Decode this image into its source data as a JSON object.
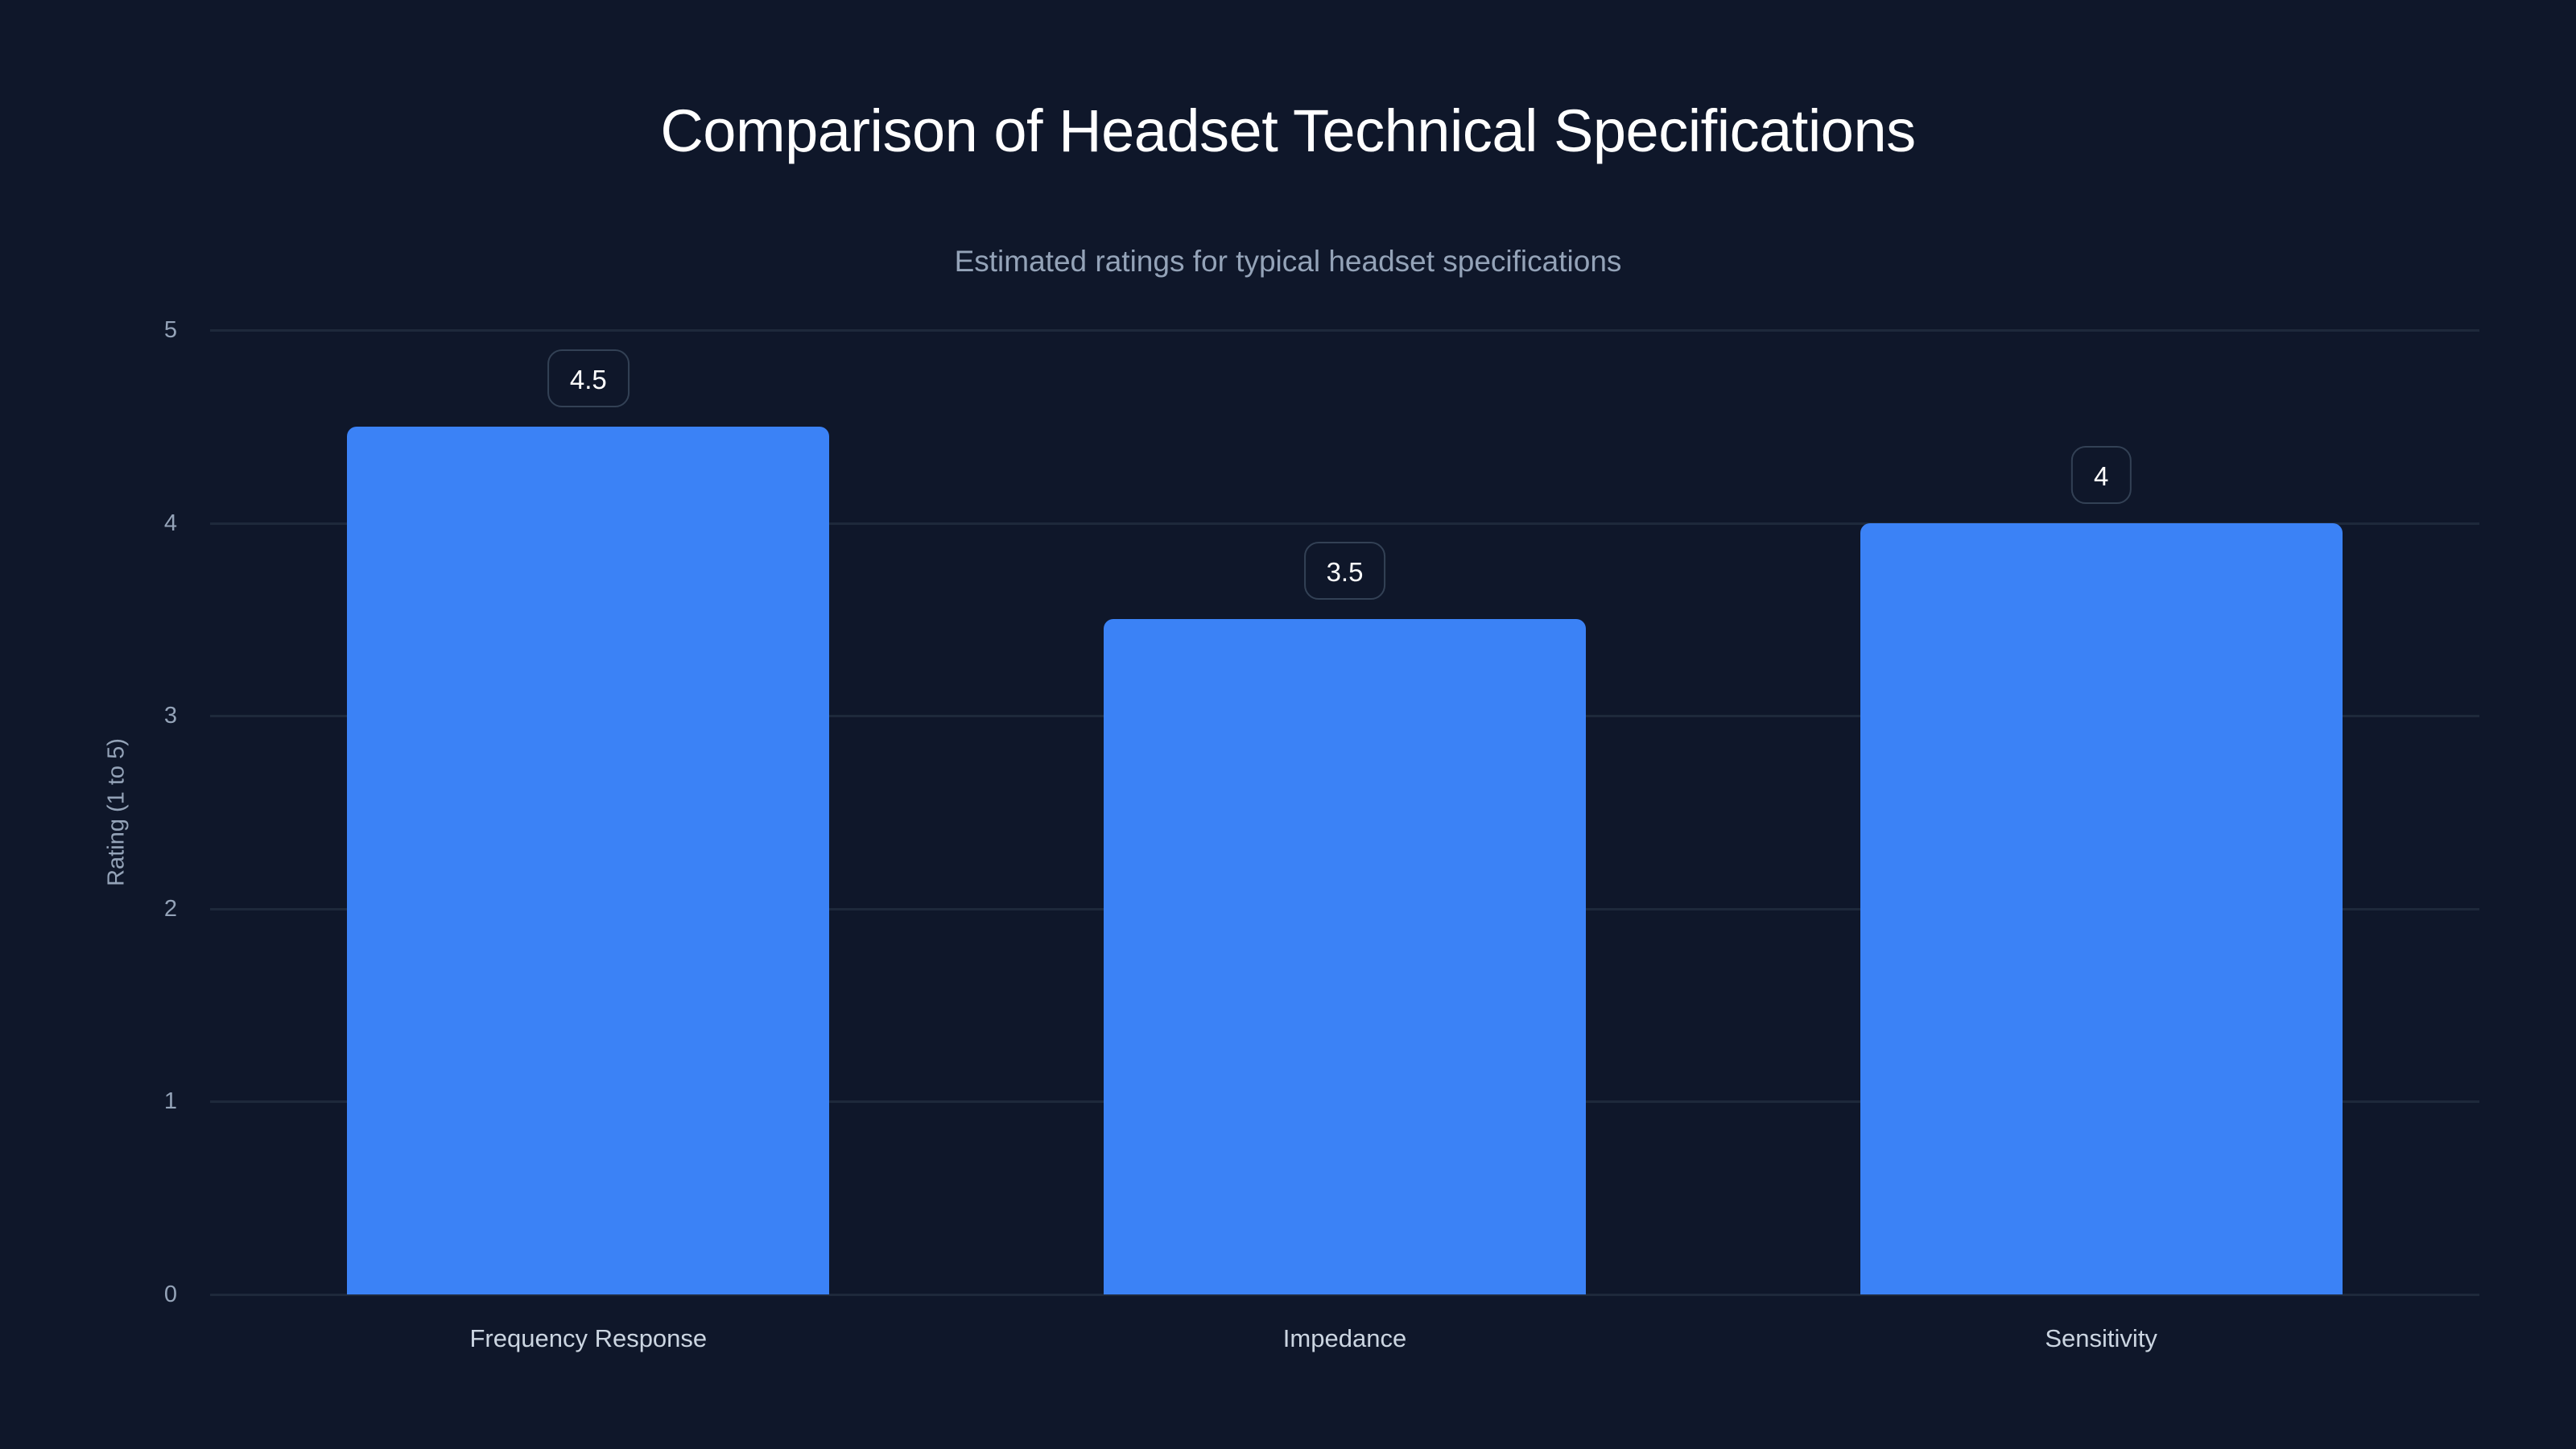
{
  "header": {
    "title": "Comparison of Headset Technical Specifications",
    "subtitle": "Estimated ratings for typical headset specifications"
  },
  "axes": {
    "y_title": "Rating (1 to 5)",
    "y_ticks": [
      "0",
      "1",
      "2",
      "3",
      "4",
      "5"
    ]
  },
  "bars": [
    {
      "category": "Frequency Response",
      "value": 4.5,
      "label": "4.5"
    },
    {
      "category": "Impedance",
      "value": 3.5,
      "label": "3.5"
    },
    {
      "category": "Sensitivity",
      "value": 4,
      "label": "4"
    }
  ],
  "colors": {
    "background": "#0f172a",
    "bar": "#3b82f6",
    "grid": "#1e293b",
    "label_border": "#334155"
  },
  "chart_data": {
    "type": "bar",
    "title": "Comparison of Headset Technical Specifications",
    "subtitle": "Estimated ratings for typical headset specifications",
    "categories": [
      "Frequency Response",
      "Impedance",
      "Sensitivity"
    ],
    "values": [
      4.5,
      3.5,
      4
    ],
    "xlabel": "",
    "ylabel": "Rating (1 to 5)",
    "ylim": [
      0,
      5
    ],
    "yticks": [
      0,
      1,
      2,
      3,
      4,
      5
    ],
    "grid": true,
    "legend": null,
    "data_labels": true
  }
}
